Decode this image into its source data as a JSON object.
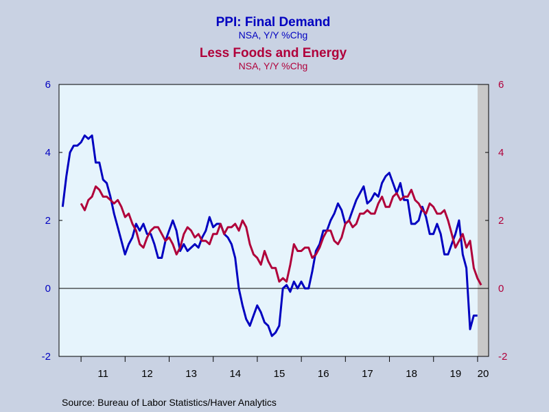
{
  "chart_data": {
    "type": "line",
    "titles": [
      {
        "title": "PPI: Final Demand",
        "subtitle": "NSA, Y/Y %Chg",
        "color": "#0000c0"
      },
      {
        "title": "Less Foods and Energy",
        "subtitle": "NSA, Y/Y %Chg",
        "color": "#b0003a"
      }
    ],
    "source": "Source:  Bureau of Labor Statistics/Haver Analytics",
    "x_range": [
      2010.5,
      2020.25
    ],
    "ylim": [
      -2,
      6
    ],
    "y_ticks": [
      "-2",
      "0",
      "2",
      "4",
      "6"
    ],
    "x_ticks": [
      "11",
      "12",
      "13",
      "14",
      "15",
      "16",
      "17",
      "18",
      "19",
      "20"
    ],
    "recession_shade": {
      "start": 2020.0,
      "end": 2020.25,
      "color": "#c8c8c8"
    },
    "zero_line": true,
    "grid": false,
    "series": [
      {
        "color": "#0000c0",
        "axis": "left",
        "x_start": 2010.583,
        "step": 0.0833,
        "values": [
          2.4,
          3.3,
          4.0,
          4.2,
          4.2,
          4.3,
          4.5,
          4.4,
          4.5,
          3.7,
          3.7,
          3.2,
          3.1,
          2.7,
          2.2,
          1.8,
          1.4,
          1.0,
          1.3,
          1.5,
          1.9,
          1.7,
          1.9,
          1.6,
          1.6,
          1.3,
          0.9,
          0.9,
          1.4,
          1.7,
          2.0,
          1.7,
          1.1,
          1.3,
          1.1,
          1.2,
          1.3,
          1.2,
          1.5,
          1.7,
          2.1,
          1.8,
          1.9,
          1.9,
          1.6,
          1.5,
          1.3,
          0.9,
          0.0,
          -0.5,
          -0.9,
          -1.1,
          -0.8,
          -0.5,
          -0.7,
          -1.0,
          -1.1,
          -1.4,
          -1.3,
          -1.1,
          0.0,
          0.1,
          -0.1,
          0.2,
          0.0,
          0.2,
          0.0,
          0.0,
          0.5,
          1.1,
          1.3,
          1.7,
          1.7,
          2.0,
          2.2,
          2.5,
          2.3,
          1.9,
          2.0,
          2.3,
          2.6,
          2.8,
          3.0,
          2.5,
          2.6,
          2.8,
          2.7,
          3.1,
          3.3,
          3.4,
          3.1,
          2.8,
          3.1,
          2.6,
          2.6,
          1.9,
          1.9,
          2.0,
          2.4,
          2.1,
          1.6,
          1.6,
          1.9,
          1.6,
          1.0,
          1.0,
          1.3,
          1.6,
          2.0,
          1.0,
          0.6,
          -1.2,
          -0.8,
          -0.8
        ]
      },
      {
        "color": "#b0003a",
        "axis": "right",
        "x_start": 2011.0,
        "step": 0.0833,
        "values": [
          2.5,
          2.3,
          2.6,
          2.7,
          3.0,
          2.9,
          2.7,
          2.7,
          2.6,
          2.5,
          2.6,
          2.4,
          2.1,
          2.2,
          1.9,
          1.7,
          1.3,
          1.2,
          1.5,
          1.7,
          1.8,
          1.8,
          1.6,
          1.4,
          1.5,
          1.3,
          1.0,
          1.2,
          1.6,
          1.8,
          1.7,
          1.5,
          1.6,
          1.4,
          1.4,
          1.3,
          1.6,
          1.6,
          1.9,
          1.6,
          1.8,
          1.8,
          1.9,
          1.7,
          2.0,
          1.8,
          1.3,
          1.0,
          0.9,
          0.7,
          1.1,
          0.8,
          0.6,
          0.6,
          0.2,
          0.3,
          0.2,
          0.7,
          1.3,
          1.1,
          1.1,
          1.2,
          1.2,
          0.9,
          1.0,
          1.2,
          1.5,
          1.7,
          1.7,
          1.4,
          1.3,
          1.5,
          1.9,
          2.0,
          1.8,
          1.9,
          2.2,
          2.2,
          2.3,
          2.2,
          2.2,
          2.5,
          2.7,
          2.4,
          2.4,
          2.7,
          2.8,
          2.6,
          2.7,
          2.7,
          2.9,
          2.6,
          2.5,
          2.3,
          2.2,
          2.5,
          2.4,
          2.2,
          2.2,
          2.3,
          2.0,
          1.6,
          1.2,
          1.4,
          1.6,
          1.2,
          1.4,
          0.6,
          0.3,
          0.1
        ]
      }
    ]
  }
}
